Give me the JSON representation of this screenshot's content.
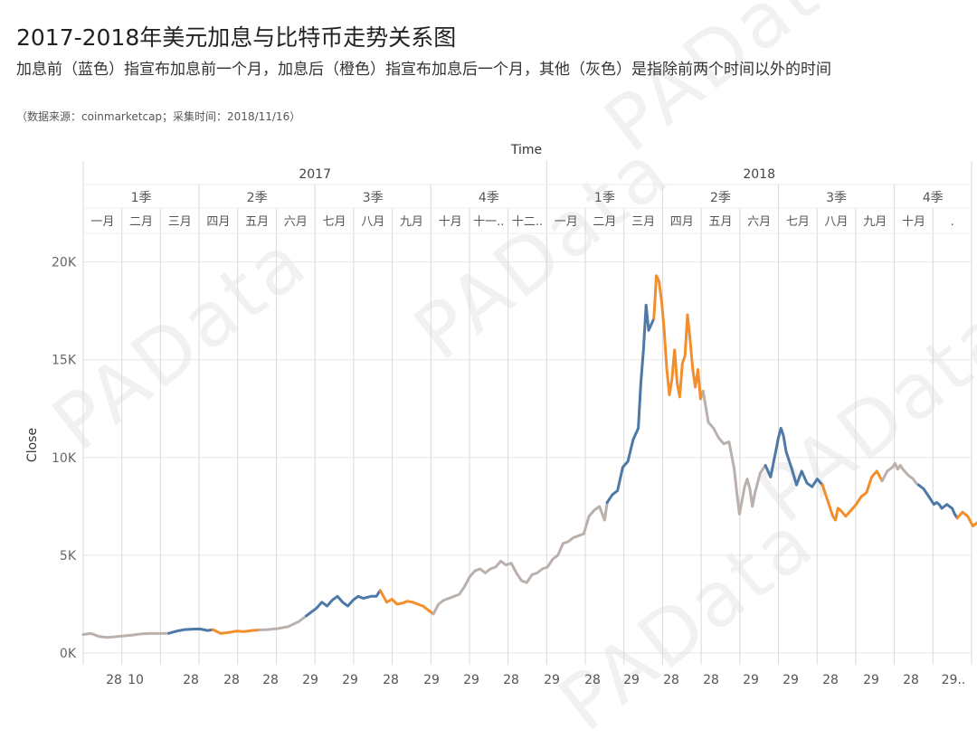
{
  "header": {
    "title": "2017-2018年美元加息与比特币走势关系图",
    "subtitle": "加息前（蓝色）指宣布加息前一个月，加息后（橙色）指宣布加息后一个月，其他（灰色）是指除前两个时间以外的时间",
    "source": "（数据来源：coinmarketcap；采集时间：2018/11/16）"
  },
  "watermark": "PAData",
  "colors": {
    "before": "#4e79a7",
    "after": "#f28e2b",
    "other": "#bab0ac",
    "grid": "#e6e6e6",
    "divider": "#d9d9d9"
  },
  "chart_data": {
    "type": "line",
    "title": "Time",
    "xlabel": "Time",
    "ylabel": "Close",
    "ylim": [
      0,
      21000
    ],
    "y_ticks": [
      0,
      5000,
      10000,
      15000,
      20000
    ],
    "y_tick_labels": [
      "0K",
      "5K",
      "10K",
      "15K",
      "20K"
    ],
    "years": [
      "2017",
      "2018"
    ],
    "quarters": [
      "1季",
      "2季",
      "3季",
      "4季",
      "1季",
      "2季",
      "3季",
      "4季"
    ],
    "months": [
      "一月",
      "二月",
      "三月",
      "四月",
      "五月",
      "六月",
      "七月",
      "八月",
      "九月",
      "十月",
      "十一..",
      "十二..",
      "一月",
      "二月",
      "三月",
      "四月",
      "五月",
      "六月",
      "七月",
      "八月",
      "九月",
      "十月",
      "."
    ],
    "day_labels": [
      "28",
      "10",
      "28",
      "28",
      "28",
      "29",
      "29",
      "28",
      "29",
      "29",
      "28",
      "29",
      "28",
      "29",
      "28",
      "28",
      "29",
      "29",
      "28",
      "29",
      "28",
      "29.."
    ],
    "x_range_days": [
      0,
      685
    ],
    "series": [
      {
        "name": "其他",
        "period": "other",
        "x": [
          0,
          6,
          12,
          18,
          24,
          30,
          38,
          45,
          52,
          60,
          66
        ],
        "values": [
          950,
          1000,
          850,
          800,
          830,
          870,
          920,
          980,
          1000,
          1000,
          1010
        ]
      },
      {
        "name": "加息前",
        "period": "before",
        "x": [
          66,
          72,
          78,
          84,
          90,
          96,
          100
        ],
        "values": [
          1010,
          1120,
          1200,
          1220,
          1230,
          1150,
          1200
        ]
      },
      {
        "name": "加息后",
        "period": "after",
        "x": [
          100,
          106,
          112,
          118,
          124,
          130,
          136
        ],
        "values": [
          1200,
          1000,
          1050,
          1120,
          1100,
          1150,
          1180
        ]
      },
      {
        "name": "其他",
        "period": "other",
        "x": [
          136,
          142,
          150,
          158,
          166,
          172
        ],
        "values": [
          1180,
          1200,
          1250,
          1350,
          1600,
          1900
        ]
      },
      {
        "name": "加息前",
        "period": "before",
        "x": [
          172,
          176,
          180,
          184,
          188,
          192,
          196,
          200,
          204,
          208,
          212,
          216,
          222,
          226,
          229
        ],
        "values": [
          1900,
          2100,
          2300,
          2600,
          2400,
          2700,
          2900,
          2600,
          2400,
          2700,
          2900,
          2800,
          2900,
          2900,
          3200
        ]
      },
      {
        "name": "加息后",
        "period": "after",
        "x": [
          229,
          234,
          238,
          242,
          246,
          250,
          254,
          258,
          262,
          266,
          270
        ],
        "values": [
          3200,
          2600,
          2750,
          2500,
          2550,
          2650,
          2600,
          2500,
          2400,
          2200,
          2000
        ]
      },
      {
        "name": "其他",
        "period": "other",
        "x": [
          270,
          274,
          278,
          282,
          286,
          290,
          294,
          298,
          302,
          306,
          310,
          314,
          318,
          322,
          326,
          330,
          334,
          338,
          342,
          346,
          350,
          354,
          358,
          362,
          366,
          370,
          374,
          378,
          382,
          386,
          390,
          394,
          398,
          402,
          404
        ],
        "values": [
          2000,
          2500,
          2700,
          2800,
          2900,
          3000,
          3400,
          3900,
          4200,
          4300,
          4100,
          4300,
          4400,
          4700,
          4500,
          4600,
          4100,
          3700,
          3600,
          4000,
          4100,
          4300,
          4400,
          4800,
          5000,
          5600,
          5700,
          5900,
          6000,
          6100,
          7000,
          7300,
          7500,
          6800,
          7700
        ]
      },
      {
        "name": "加息前",
        "period": "before",
        "x": [
          404,
          408,
          412,
          416,
          420,
          424,
          428,
          430,
          432,
          434,
          436,
          438,
          440
        ],
        "values": [
          7700,
          8100,
          8300,
          9500,
          9800,
          10900,
          11500,
          13800,
          15500,
          17800,
          16500,
          16800,
          17100
        ]
      },
      {
        "name": "加息后",
        "period": "after",
        "x": [
          440,
          442,
          444,
          446,
          448,
          450,
          452,
          454,
          456,
          458,
          460,
          462,
          464,
          466,
          468,
          470,
          472,
          474,
          476,
          478
        ],
        "values": [
          17100,
          19300,
          19000,
          18000,
          16500,
          14500,
          13200,
          14000,
          15500,
          13800,
          13100,
          14800,
          15200,
          17300,
          16000,
          14500,
          13600,
          14500,
          13000,
          13400
        ]
      },
      {
        "name": "其他",
        "period": "other",
        "x": [
          478,
          482,
          486,
          490,
          494,
          498,
          502,
          504,
          506,
          508,
          510,
          512,
          514,
          516,
          518,
          522,
          526
        ],
        "values": [
          13400,
          11800,
          11500,
          11000,
          10700,
          10800,
          9400,
          8200,
          7100,
          7800,
          8500,
          8900,
          8400,
          7500,
          8200,
          9200,
          9600
        ]
      },
      {
        "name": "加息前",
        "period": "before",
        "x": [
          526,
          530,
          534,
          536,
          538,
          540,
          542,
          546,
          550,
          554,
          558,
          562,
          566,
          570
        ],
        "values": [
          9600,
          9000,
          10300,
          11000,
          11500,
          11100,
          10300,
          9500,
          8600,
          9300,
          8700,
          8500,
          8900,
          8600
        ]
      },
      {
        "name": "加息后",
        "period": "after",
        "x": [
          570,
          574,
          578,
          580,
          582,
          584,
          588,
          592,
          596,
          600,
          604,
          608,
          612,
          616
        ],
        "values": [
          8600,
          7800,
          7000,
          6800,
          7400,
          7300,
          7000,
          7300,
          7600,
          8000,
          8200,
          9000,
          9300,
          8800
        ]
      },
      {
        "name": "其他",
        "period": "other",
        "x": [
          616,
          620,
          624,
          626,
          628,
          630,
          632,
          636,
          640,
          642,
          644
        ],
        "values": [
          8800,
          9300,
          9500,
          9700,
          9400,
          9600,
          9400,
          9100,
          8900,
          8700,
          8600
        ]
      },
      {
        "name": "加息前",
        "period": "before",
        "x": [
          644,
          648,
          652,
          656,
          658,
          660,
          662,
          664,
          666,
          668,
          670,
          672,
          674
        ],
        "values": [
          8600,
          8400,
          8000,
          7600,
          7700,
          7600,
          7400,
          7500,
          7600,
          7500,
          7400,
          7100,
          6900
        ]
      },
      {
        "name": "加息后",
        "period": "after",
        "x": [
          674,
          678,
          682,
          686,
          690,
          694,
          698,
          702
        ],
        "values": [
          6900,
          7200,
          7000,
          6500,
          6700,
          6900,
          7000,
          6800
        ]
      }
    ]
  }
}
